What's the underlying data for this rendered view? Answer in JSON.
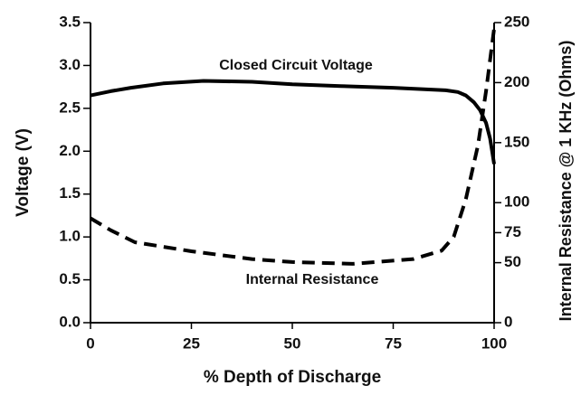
{
  "chart_data": {
    "type": "line",
    "xlabel": "% Depth of Discharge",
    "ylabel": "Voltage (V)",
    "y2label": "Internal Resistance @ 1 KHz (Ohms)",
    "xlim": [
      0,
      100
    ],
    "xticks": [
      0,
      25,
      50,
      75,
      100
    ],
    "ylim": [
      0,
      3.5
    ],
    "yticks": [
      {
        "value": 0,
        "label": "0.0"
      },
      0.5,
      {
        "value": 1,
        "label": "1.0"
      },
      1.5,
      {
        "value": 2,
        "label": "2.0"
      },
      2.5,
      {
        "value": 3,
        "label": "3.0"
      },
      3.5
    ],
    "y2lim": [
      0,
      250
    ],
    "y2ticks": [
      0,
      50,
      75,
      100,
      150,
      200,
      250
    ],
    "series": [
      {
        "name": "Closed Circuit Voltage",
        "color": "#000000",
        "style": "solid",
        "x": [
          0,
          5,
          10,
          18,
          28,
          40,
          50,
          62,
          75,
          88,
          91,
          93,
          95,
          96.5,
          98,
          99,
          99.5,
          100
        ],
        "values": [
          2.65,
          2.7,
          2.74,
          2.79,
          2.82,
          2.81,
          2.78,
          2.76,
          2.74,
          2.71,
          2.69,
          2.65,
          2.57,
          2.48,
          2.33,
          2.15,
          2.0,
          1.85
        ]
      },
      {
        "name": "Internal Resistance",
        "color": "#000000",
        "style": "dashed",
        "axis": "y2",
        "x": [
          0,
          5,
          11,
          25,
          40,
          50,
          65,
          80,
          87,
          90,
          93,
          96,
          98,
          100
        ],
        "values": [
          87,
          77,
          67,
          59.5,
          53,
          50.5,
          49,
          53,
          60,
          71.5,
          103,
          148,
          193,
          245
        ]
      }
    ]
  }
}
